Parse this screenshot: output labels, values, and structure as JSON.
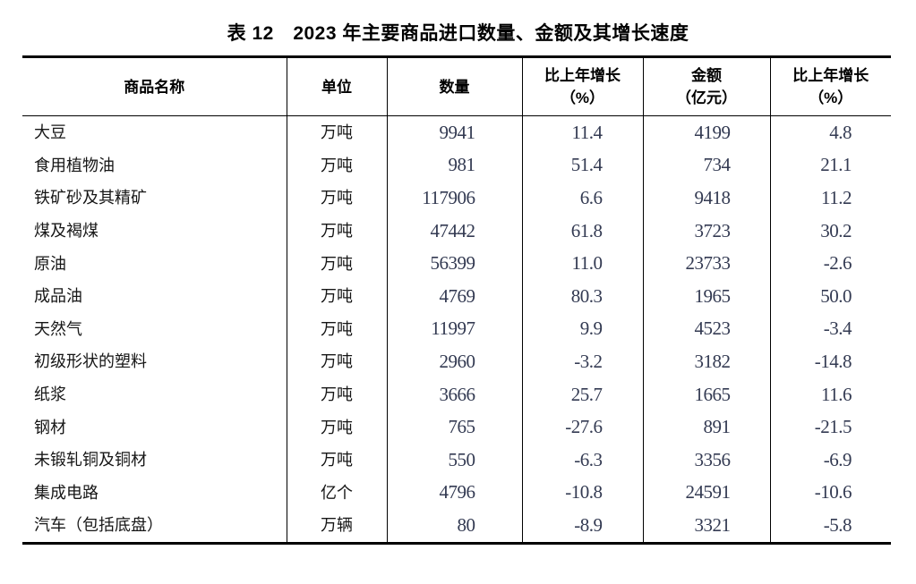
{
  "title": "表 12　2023 年主要商品进口数量、金额及其增长速度",
  "colors": {
    "page-bg": "#ffffff",
    "border": "#000000",
    "heading-text": "#000000",
    "body-text": "#161616",
    "number-text": "#333a52"
  },
  "table": {
    "columns": [
      {
        "label": "商品名称",
        "sub": ""
      },
      {
        "label": "单位",
        "sub": ""
      },
      {
        "label": "数量",
        "sub": ""
      },
      {
        "label": "比上年增长",
        "sub": "（%）"
      },
      {
        "label": "金额",
        "sub": "（亿元）"
      },
      {
        "label": "比上年增长",
        "sub": "（%）"
      }
    ],
    "rows": [
      [
        "大豆",
        "万吨",
        "9941",
        "11.4",
        "4199",
        "4.8"
      ],
      [
        "食用植物油",
        "万吨",
        "981",
        "51.4",
        "734",
        "21.1"
      ],
      [
        "铁矿砂及其精矿",
        "万吨",
        "117906",
        "6.6",
        "9418",
        "11.2"
      ],
      [
        "煤及褐煤",
        "万吨",
        "47442",
        "61.8",
        "3723",
        "30.2"
      ],
      [
        "原油",
        "万吨",
        "56399",
        "11.0",
        "23733",
        "-2.6"
      ],
      [
        "成品油",
        "万吨",
        "4769",
        "80.3",
        "1965",
        "50.0"
      ],
      [
        "天然气",
        "万吨",
        "11997",
        "9.9",
        "4523",
        "-3.4"
      ],
      [
        "初级形状的塑料",
        "万吨",
        "2960",
        "-3.2",
        "3182",
        "-14.8"
      ],
      [
        "纸浆",
        "万吨",
        "3666",
        "25.7",
        "1665",
        "11.6"
      ],
      [
        "钢材",
        "万吨",
        "765",
        "-27.6",
        "891",
        "-21.5"
      ],
      [
        "未锻轧铜及铜材",
        "万吨",
        "550",
        "-6.3",
        "3356",
        "-6.9"
      ],
      [
        "集成电路",
        "亿个",
        "4796",
        "-10.8",
        "24591",
        "-10.6"
      ],
      [
        "汽车（包括底盘）",
        "万辆",
        "80",
        "-8.9",
        "3321",
        "-5.8"
      ]
    ]
  }
}
